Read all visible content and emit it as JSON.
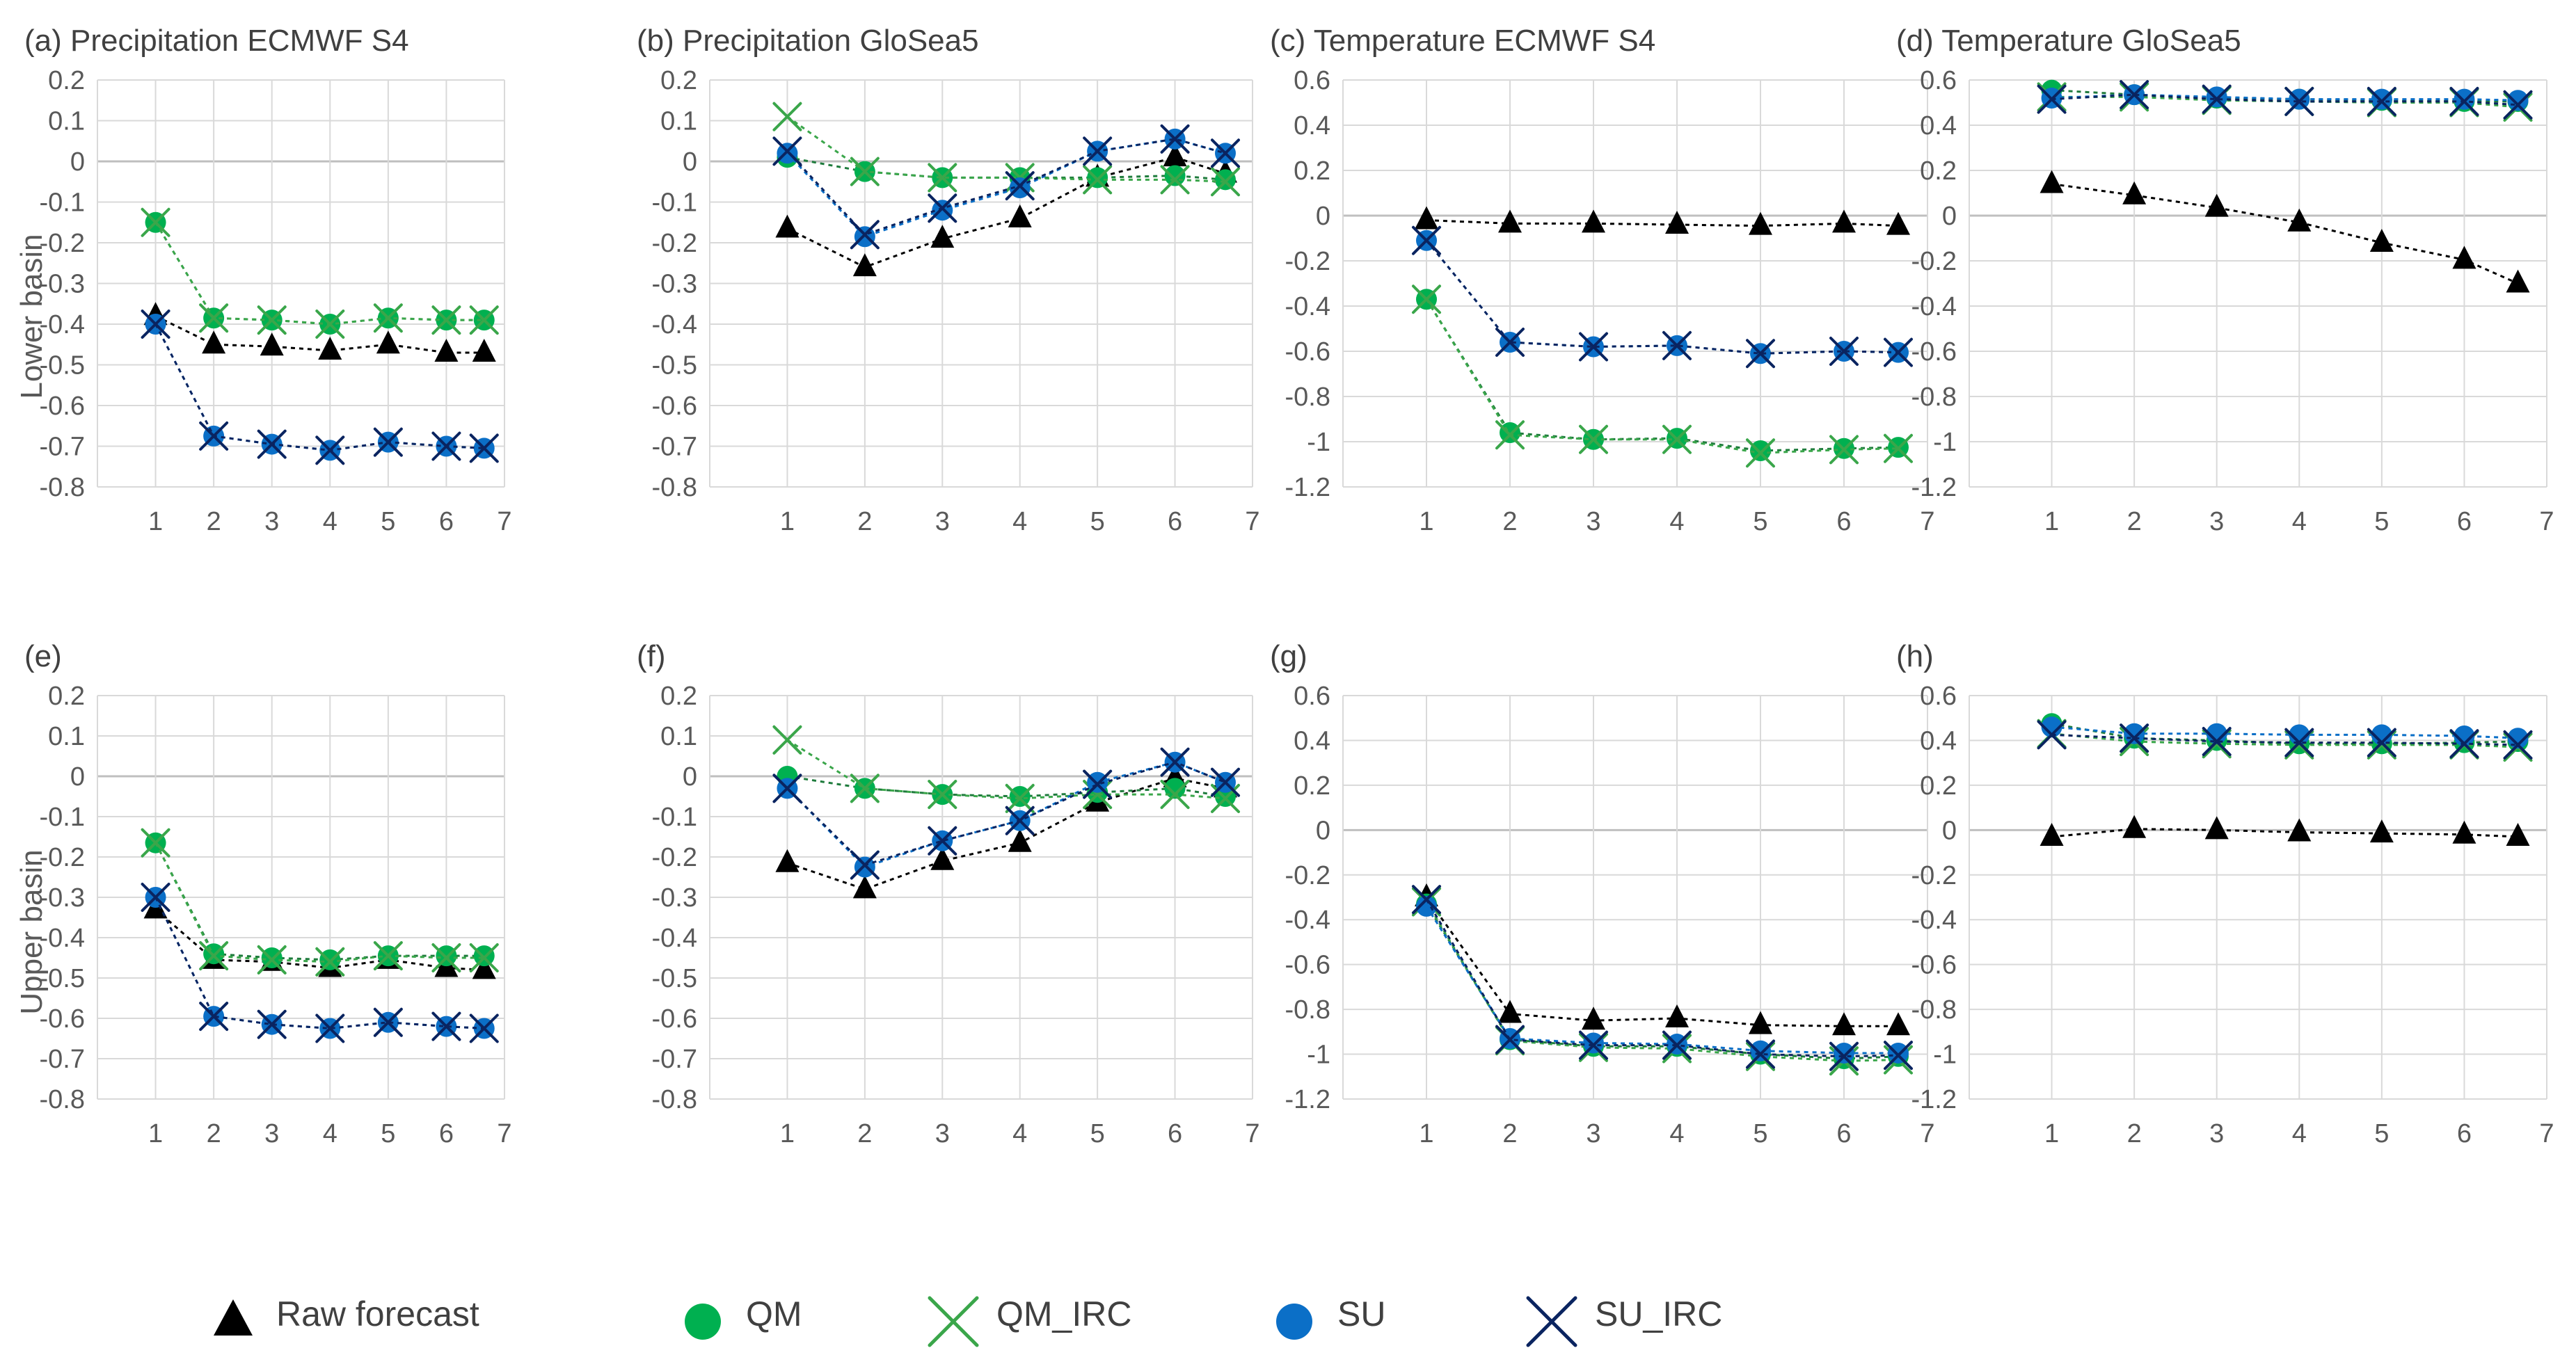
{
  "colors": {
    "raw": "#000000",
    "qm": "#00b050",
    "qm_line": "#1e7b3c",
    "qm_irc": "#3aa64a",
    "su": "#0b6fc7",
    "su_irc": "#0a2460",
    "grid": "#d9d9d9",
    "axis": "#bfbfbf"
  },
  "row_labels": [
    "Lower basin",
    "Upper basin"
  ],
  "legend": [
    {
      "key": "raw",
      "label": "Raw forecast",
      "marker": "triangle"
    },
    {
      "key": "qm",
      "label": "QM",
      "marker": "circle"
    },
    {
      "key": "qm_irc",
      "label": "QM_IRC",
      "marker": "x"
    },
    {
      "key": "su",
      "label": "SU",
      "marker": "circle"
    },
    {
      "key": "su_irc",
      "label": "SU_IRC",
      "marker": "x"
    }
  ],
  "chart_data": [
    {
      "type": "line",
      "title": "(a)  Precipitation ECMWF S4",
      "xlim": [
        0,
        7
      ],
      "ylim": [
        -0.8,
        0.2
      ],
      "ystep": 0.1,
      "categories": [
        "1",
        "2",
        "3",
        "4",
        "5",
        "6",
        "7"
      ],
      "series": [
        {
          "name": "Raw forecast",
          "key": "raw",
          "values": [
            -0.38,
            -0.45,
            -0.455,
            -0.465,
            -0.45,
            -0.47,
            -0.47
          ]
        },
        {
          "name": "QM",
          "key": "qm",
          "values": [
            -0.15,
            -0.385,
            -0.39,
            -0.4,
            -0.385,
            -0.39,
            -0.39
          ]
        },
        {
          "name": "QM_IRC",
          "key": "qm_irc",
          "values": [
            -0.15,
            -0.385,
            -0.39,
            -0.4,
            -0.385,
            -0.39,
            -0.39
          ]
        },
        {
          "name": "SU",
          "key": "su",
          "values": [
            -0.4,
            -0.675,
            -0.695,
            -0.71,
            -0.69,
            -0.7,
            -0.705
          ]
        },
        {
          "name": "SU_IRC",
          "key": "su_irc",
          "values": [
            -0.4,
            -0.675,
            -0.695,
            -0.71,
            -0.69,
            -0.7,
            -0.705
          ]
        }
      ]
    },
    {
      "type": "line",
      "title": "(b)  Precipitation  GloSea5",
      "xlim": [
        0,
        7
      ],
      "ylim": [
        -0.8,
        0.2
      ],
      "ystep": 0.1,
      "categories": [
        "1",
        "2",
        "3",
        "4",
        "5",
        "6",
        "7"
      ],
      "series": [
        {
          "name": "Raw forecast",
          "key": "raw",
          "values": [
            -0.165,
            -0.26,
            -0.19,
            -0.14,
            -0.04,
            0.01,
            -0.03
          ]
        },
        {
          "name": "QM",
          "key": "qm",
          "values": [
            0.01,
            -0.025,
            -0.04,
            -0.04,
            -0.04,
            -0.035,
            -0.045
          ]
        },
        {
          "name": "QM_IRC",
          "key": "qm_irc",
          "values": [
            0.11,
            -0.025,
            -0.04,
            -0.04,
            -0.045,
            -0.045,
            -0.05
          ]
        },
        {
          "name": "SU",
          "key": "su",
          "values": [
            0.02,
            -0.185,
            -0.12,
            -0.065,
            0.025,
            0.055,
            0.02
          ]
        },
        {
          "name": "SU_IRC",
          "key": "su_irc",
          "values": [
            0.025,
            -0.18,
            -0.115,
            -0.06,
            0.025,
            0.055,
            0.02
          ]
        }
      ]
    },
    {
      "type": "line",
      "title": "(c)  Temperature ECMWF S4",
      "xlim": [
        0,
        7
      ],
      "ylim": [
        -1.2,
        0.6
      ],
      "ystep": 0.2,
      "categories": [
        "1",
        "2",
        "3",
        "4",
        "5",
        "6",
        "7"
      ],
      "series": [
        {
          "name": "Raw forecast",
          "key": "raw",
          "values": [
            -0.02,
            -0.035,
            -0.035,
            -0.04,
            -0.045,
            -0.035,
            -0.045
          ]
        },
        {
          "name": "QM",
          "key": "qm",
          "values": [
            -0.37,
            -0.96,
            -0.99,
            -0.985,
            -1.04,
            -1.03,
            -1.025
          ]
        },
        {
          "name": "QM_IRC",
          "key": "qm_irc",
          "values": [
            -0.37,
            -0.97,
            -0.99,
            -0.99,
            -1.05,
            -1.035,
            -1.03
          ]
        },
        {
          "name": "SU",
          "key": "su",
          "values": [
            -0.11,
            -0.56,
            -0.58,
            -0.575,
            -0.61,
            -0.6,
            -0.605
          ]
        },
        {
          "name": "SU_IRC",
          "key": "su_irc",
          "values": [
            -0.11,
            -0.56,
            -0.58,
            -0.575,
            -0.61,
            -0.6,
            -0.605
          ]
        }
      ]
    },
    {
      "type": "line",
      "title": "(d)  Temperature GloSea5",
      "xlim": [
        0,
        7
      ],
      "ylim": [
        -1.2,
        0.6
      ],
      "ystep": 0.2,
      "categories": [
        "1",
        "2",
        "3",
        "4",
        "5",
        "6",
        "7"
      ],
      "series": [
        {
          "name": "Raw forecast",
          "key": "raw",
          "values": [
            0.14,
            0.09,
            0.035,
            -0.03,
            -0.12,
            -0.195,
            -0.3
          ]
        },
        {
          "name": "QM",
          "key": "qm",
          "values": [
            0.555,
            0.535,
            0.52,
            0.515,
            0.51,
            0.505,
            0.505
          ]
        },
        {
          "name": "QM_IRC",
          "key": "qm_irc",
          "values": [
            0.525,
            0.525,
            0.51,
            0.505,
            0.5,
            0.5,
            0.48
          ]
        },
        {
          "name": "SU",
          "key": "su",
          "values": [
            0.52,
            0.535,
            0.525,
            0.515,
            0.515,
            0.515,
            0.51
          ]
        },
        {
          "name": "SU_IRC",
          "key": "su_irc",
          "values": [
            0.515,
            0.535,
            0.515,
            0.505,
            0.505,
            0.505,
            0.49
          ]
        }
      ]
    },
    {
      "type": "line",
      "title": "(e)",
      "xlim": [
        0,
        7
      ],
      "ylim": [
        -0.8,
        0.2
      ],
      "ystep": 0.1,
      "categories": [
        "1",
        "2",
        "3",
        "4",
        "5",
        "6",
        "7"
      ],
      "series": [
        {
          "name": "Raw forecast",
          "key": "raw",
          "values": [
            -0.33,
            -0.455,
            -0.46,
            -0.475,
            -0.455,
            -0.475,
            -0.48
          ]
        },
        {
          "name": "QM",
          "key": "qm",
          "values": [
            -0.165,
            -0.44,
            -0.45,
            -0.455,
            -0.445,
            -0.445,
            -0.445
          ]
        },
        {
          "name": "QM_IRC",
          "key": "qm_irc",
          "values": [
            -0.165,
            -0.445,
            -0.455,
            -0.46,
            -0.445,
            -0.45,
            -0.45
          ]
        },
        {
          "name": "SU",
          "key": "su",
          "values": [
            -0.3,
            -0.595,
            -0.615,
            -0.625,
            -0.61,
            -0.62,
            -0.625
          ]
        },
        {
          "name": "SU_IRC",
          "key": "su_irc",
          "values": [
            -0.3,
            -0.595,
            -0.615,
            -0.625,
            -0.61,
            -0.62,
            -0.625
          ]
        }
      ]
    },
    {
      "type": "line",
      "title": "(f)",
      "xlim": [
        0,
        7
      ],
      "ylim": [
        -0.8,
        0.2
      ],
      "ystep": 0.1,
      "categories": [
        "1",
        "2",
        "3",
        "4",
        "5",
        "6",
        "7"
      ],
      "series": [
        {
          "name": "Raw forecast",
          "key": "raw",
          "values": [
            -0.215,
            -0.28,
            -0.21,
            -0.165,
            -0.065,
            -0.005,
            -0.03
          ]
        },
        {
          "name": "QM",
          "key": "qm",
          "values": [
            0.0,
            -0.03,
            -0.045,
            -0.05,
            -0.04,
            -0.03,
            -0.05
          ]
        },
        {
          "name": "QM_IRC",
          "key": "qm_irc",
          "values": [
            0.09,
            -0.03,
            -0.045,
            -0.055,
            -0.045,
            -0.045,
            -0.055
          ]
        },
        {
          "name": "SU",
          "key": "su",
          "values": [
            -0.03,
            -0.225,
            -0.16,
            -0.11,
            -0.015,
            0.035,
            -0.015
          ]
        },
        {
          "name": "SU_IRC",
          "key": "su_irc",
          "values": [
            -0.03,
            -0.22,
            -0.16,
            -0.11,
            -0.02,
            0.035,
            -0.015
          ]
        }
      ]
    },
    {
      "type": "line",
      "title": "(g)",
      "xlim": [
        0,
        7
      ],
      "ylim": [
        -1.2,
        0.6
      ],
      "ystep": 0.2,
      "categories": [
        "1",
        "2",
        "3",
        "4",
        "5",
        "6",
        "7"
      ],
      "series": [
        {
          "name": "Raw forecast",
          "key": "raw",
          "values": [
            -0.3,
            -0.82,
            -0.85,
            -0.84,
            -0.87,
            -0.875,
            -0.875
          ]
        },
        {
          "name": "QM",
          "key": "qm",
          "values": [
            -0.33,
            -0.935,
            -0.965,
            -0.965,
            -1.0,
            -1.02,
            -1.01
          ]
        },
        {
          "name": "QM_IRC",
          "key": "qm_irc",
          "values": [
            -0.32,
            -0.94,
            -0.97,
            -0.975,
            -1.01,
            -1.03,
            -1.025
          ]
        },
        {
          "name": "SU",
          "key": "su",
          "values": [
            -0.34,
            -0.93,
            -0.95,
            -0.955,
            -0.985,
            -0.995,
            -0.995
          ]
        },
        {
          "name": "SU_IRC",
          "key": "su_irc",
          "values": [
            -0.31,
            -0.935,
            -0.96,
            -0.96,
            -1.0,
            -1.01,
            -1.005
          ]
        }
      ]
    },
    {
      "type": "line",
      "title": "(h)",
      "xlim": [
        0,
        7
      ],
      "ylim": [
        -1.2,
        0.6
      ],
      "ystep": 0.2,
      "categories": [
        "1",
        "2",
        "3",
        "4",
        "5",
        "6",
        "7"
      ],
      "series": [
        {
          "name": "Raw forecast",
          "key": "raw",
          "values": [
            -0.03,
            0.005,
            0.0,
            -0.01,
            -0.015,
            -0.02,
            -0.03
          ]
        },
        {
          "name": "QM",
          "key": "qm",
          "values": [
            0.475,
            0.41,
            0.4,
            0.385,
            0.385,
            0.39,
            0.395
          ]
        },
        {
          "name": "QM_IRC",
          "key": "qm_irc",
          "values": [
            0.43,
            0.395,
            0.385,
            0.38,
            0.38,
            0.38,
            0.37
          ]
        },
        {
          "name": "SU",
          "key": "su",
          "values": [
            0.46,
            0.43,
            0.43,
            0.425,
            0.425,
            0.42,
            0.41
          ]
        },
        {
          "name": "SU_IRC",
          "key": "su_irc",
          "values": [
            0.425,
            0.41,
            0.395,
            0.39,
            0.39,
            0.385,
            0.38
          ]
        }
      ]
    }
  ]
}
